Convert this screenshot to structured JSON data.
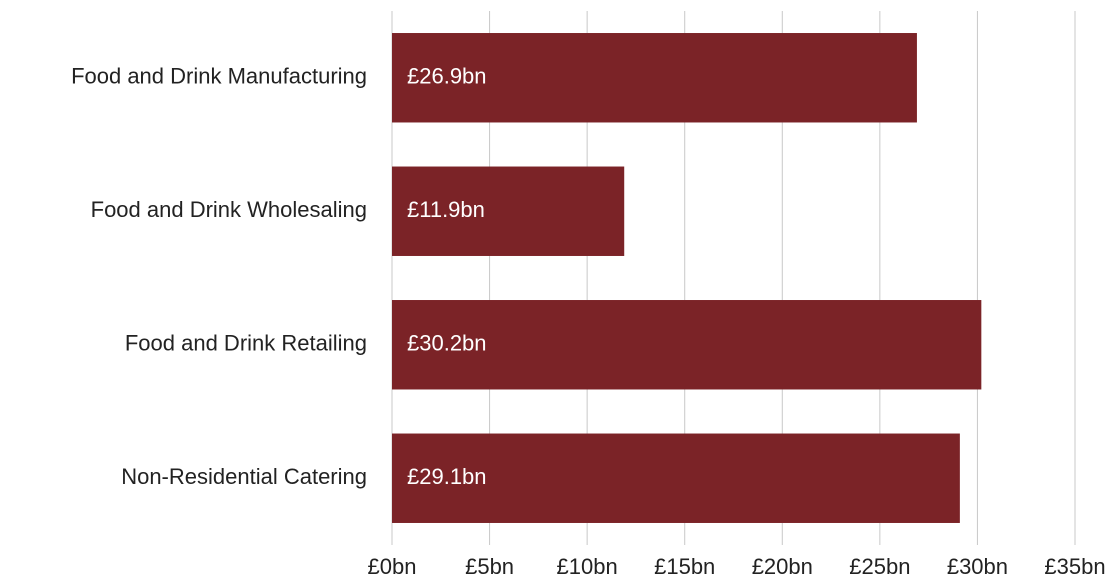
{
  "chart_data": {
    "type": "barh",
    "categories": [
      "Food and Drink Manufacturing",
      "Food and Drink Wholesaling",
      "Food and Drink Retailing",
      "Non-Residential Catering"
    ],
    "values": [
      26.9,
      11.9,
      30.2,
      29.1
    ],
    "value_labels": [
      "£26.9bn",
      "£11.9bn",
      "£30.2bn",
      "£29.1bn"
    ],
    "color": "#7b2327",
    "xlim": [
      0,
      35
    ],
    "xticks": [
      {
        "value": 0,
        "label": "£0bn"
      },
      {
        "value": 5,
        "label": "£5bn"
      },
      {
        "value": 10,
        "label": "£10bn"
      },
      {
        "value": 15,
        "label": "£15bn"
      },
      {
        "value": 20,
        "label": "£20bn"
      },
      {
        "value": 25,
        "label": "£25bn"
      },
      {
        "value": 30,
        "label": "£30bn"
      },
      {
        "value": 35,
        "label": "£35bn"
      }
    ],
    "grid": true
  }
}
